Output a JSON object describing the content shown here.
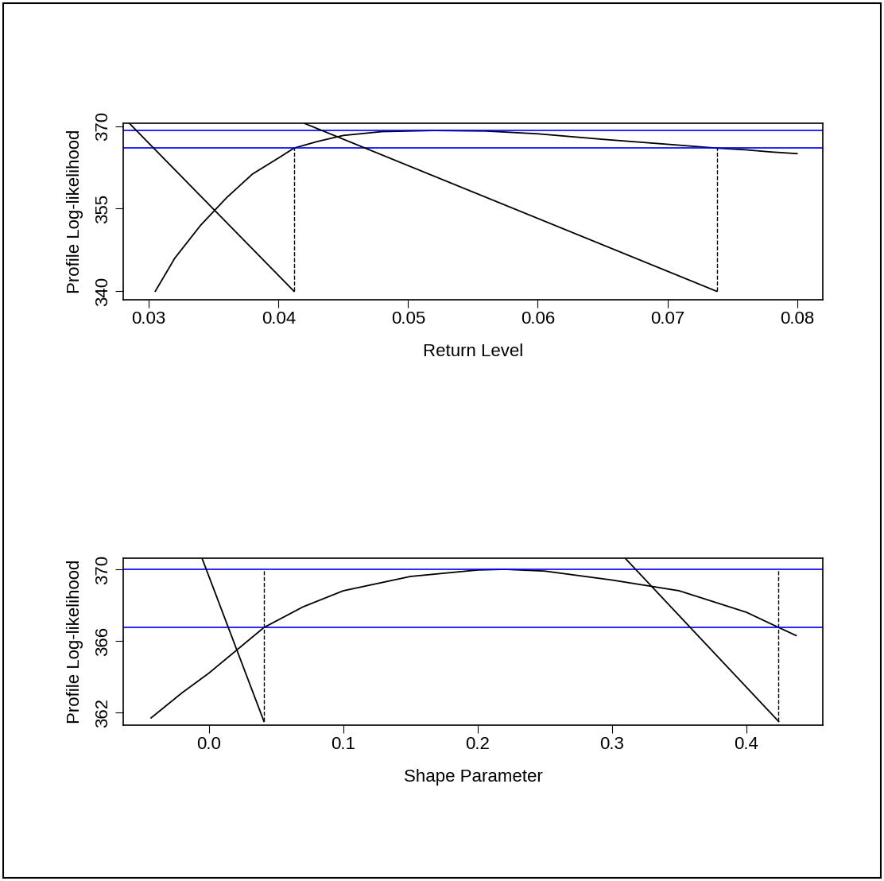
{
  "chart_data": [
    {
      "type": "line",
      "x_label": "Return Level",
      "y_label": "Profile Log-likelihood",
      "x": [
        0.0305,
        0.032,
        0.034,
        0.036,
        0.038,
        0.04,
        0.0412,
        0.043,
        0.045,
        0.048,
        0.052,
        0.056,
        0.06,
        0.065,
        0.07,
        0.0738,
        0.076,
        0.078,
        0.08
      ],
      "values": [
        340,
        346,
        352,
        357,
        361.3,
        364.2,
        366.0,
        367.2,
        368.3,
        369.0,
        369.2,
        369.1,
        368.6,
        367.6,
        366.7,
        366.0,
        365.7,
        365.3,
        365.0
      ],
      "color": "#000000",
      "hlines": [
        369.2,
        366.0
      ],
      "hline_color": "#0000ff",
      "ci_lines": [
        [
          0.0412,
          340,
          0.0412,
          366.0
        ],
        [
          0.0738,
          340,
          0.0738,
          366.0
        ]
      ],
      "segments": [
        [
          0.0285,
          370.5,
          0.0412,
          340
        ],
        [
          0.042,
          370.5,
          0.0738,
          340
        ]
      ],
      "xlim": [
        0.028,
        0.082
      ],
      "ylim": [
        338.5,
        370.5
      ],
      "xticks": [
        0.03,
        0.04,
        0.05,
        0.06,
        0.07,
        0.08
      ],
      "yticks": [
        340,
        355,
        370
      ]
    },
    {
      "type": "line",
      "x_label": "Shape Parameter",
      "y_label": "Profile Log-likelihood",
      "x": [
        -0.043,
        -0.02,
        0.0,
        0.041,
        0.07,
        0.1,
        0.15,
        0.2,
        0.22,
        0.25,
        0.3,
        0.35,
        0.4,
        0.424,
        0.437
      ],
      "values": [
        361.7,
        363.1,
        364.2,
        366.75,
        367.9,
        368.8,
        369.6,
        369.96,
        370.0,
        369.9,
        369.4,
        368.8,
        367.6,
        366.75,
        366.3
      ],
      "color": "#000000",
      "hlines": [
        370.0,
        366.75
      ],
      "hline_color": "#0000ff",
      "ci_lines": [
        [
          0.041,
          361.5,
          0.041,
          370.0
        ],
        [
          0.424,
          361.5,
          0.424,
          370.0
        ]
      ],
      "segments": [
        [
          -0.005,
          370.6,
          0.041,
          361.5
        ],
        [
          0.31,
          370.6,
          0.424,
          361.5
        ]
      ],
      "xlim": [
        -0.064,
        0.457
      ],
      "ylim": [
        361.3,
        370.6
      ],
      "xticks": [
        {
          "value": 0,
          "label": "0.0"
        },
        0.1,
        0.2,
        0.3,
        0.4
      ],
      "yticks": [
        362,
        366,
        370
      ]
    }
  ]
}
